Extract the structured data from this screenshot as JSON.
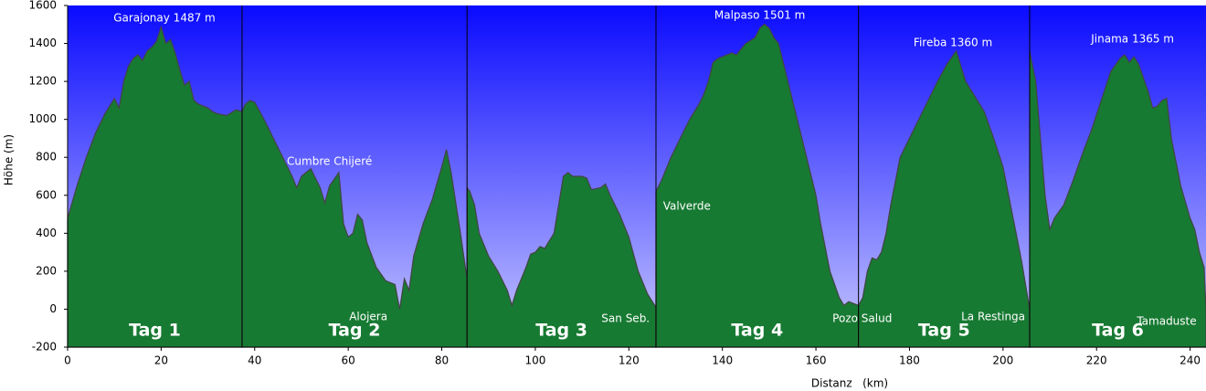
{
  "chart_data": {
    "type": "area",
    "xlabel": "Distanz   (km)",
    "ylabel": "Höhe (m)",
    "xlim": [
      0,
      243.4
    ],
    "ylim": [
      -200,
      1600
    ],
    "xticks": [
      0,
      20,
      40,
      60,
      80,
      100,
      120,
      140,
      160,
      180,
      200,
      220,
      240
    ],
    "yticks": [
      -200,
      0,
      200,
      400,
      600,
      800,
      1000,
      1200,
      1400,
      1600
    ],
    "color": "#22a846",
    "series": [
      {
        "name": "Tag 1",
        "x": [
          0,
          2,
          4,
          6,
          8,
          10,
          11,
          12,
          13,
          14,
          15,
          16,
          17,
          18,
          19,
          20,
          21,
          22,
          23,
          24,
          25,
          26,
          27,
          28,
          30,
          31,
          32,
          34,
          36,
          37.3
        ],
        "values": [
          480,
          650,
          800,
          930,
          1030,
          1110,
          1060,
          1200,
          1280,
          1320,
          1340,
          1310,
          1360,
          1380,
          1410,
          1487,
          1400,
          1420,
          1350,
          1260,
          1180,
          1200,
          1100,
          1080,
          1060,
          1040,
          1030,
          1020,
          1050,
          1040
        ]
      },
      {
        "name": "Tag 2",
        "x": [
          37.3,
          38,
          39,
          40,
          42,
          44,
          46,
          48,
          49,
          50,
          52,
          54,
          55,
          56,
          58,
          59,
          60,
          61,
          62,
          63,
          64,
          66,
          68,
          70,
          71,
          72,
          73,
          74,
          76,
          78,
          80,
          81,
          82,
          84,
          85.4
        ],
        "values": [
          1040,
          1080,
          1100,
          1090,
          1000,
          900,
          800,
          700,
          640,
          700,
          740,
          640,
          560,
          650,
          720,
          450,
          380,
          400,
          500,
          470,
          350,
          220,
          150,
          130,
          0,
          160,
          100,
          280,
          450,
          580,
          750,
          840,
          720,
          400,
          160
        ]
      },
      {
        "name": "Tag 3",
        "x": [
          85.4,
          86,
          87,
          88,
          90,
          92,
          94,
          95,
          96,
          98,
          99,
          100,
          101,
          102,
          104,
          105,
          106,
          107,
          108,
          110,
          111,
          112,
          114,
          115,
          116,
          118,
          120,
          122,
          124,
          125.8
        ],
        "values": [
          640,
          620,
          550,
          400,
          280,
          200,
          100,
          20,
          100,
          220,
          290,
          300,
          330,
          320,
          400,
          550,
          700,
          720,
          700,
          700,
          690,
          630,
          640,
          660,
          600,
          500,
          380,
          200,
          80,
          10
        ]
      },
      {
        "name": "Tag 4",
        "x": [
          125.8,
          127,
          129,
          131,
          133,
          135,
          136,
          137,
          138,
          139,
          140,
          142,
          143,
          144,
          145,
          147,
          148,
          149,
          150,
          151,
          152,
          153,
          155,
          157,
          159,
          160,
          161,
          163,
          165,
          166,
          167,
          169.1
        ],
        "values": [
          620,
          680,
          800,
          900,
          1000,
          1080,
          1130,
          1200,
          1300,
          1320,
          1330,
          1350,
          1340,
          1370,
          1400,
          1430,
          1480,
          1501,
          1480,
          1430,
          1400,
          1300,
          1100,
          900,
          700,
          600,
          450,
          200,
          60,
          20,
          40,
          20
        ]
      },
      {
        "name": "Tag 5",
        "x": [
          169.1,
          170,
          171,
          172,
          173,
          174,
          175,
          176,
          178,
          180,
          182,
          184,
          186,
          188,
          190,
          192,
          194,
          196,
          198,
          200,
          202,
          204,
          205.7
        ],
        "values": [
          20,
          60,
          200,
          270,
          260,
          300,
          400,
          550,
          800,
          900,
          1000,
          1100,
          1200,
          1290,
          1360,
          1200,
          1120,
          1040,
          900,
          750,
          500,
          250,
          0
        ]
      },
      {
        "name": "Tag 6",
        "x": [
          205.7,
          206,
          207,
          208,
          209,
          210,
          211,
          213,
          215,
          217,
          219,
          221,
          223,
          225,
          226,
          227,
          228,
          229,
          231,
          232,
          233,
          234,
          235,
          236,
          238,
          240,
          241,
          242,
          243,
          243.4
        ],
        "values": [
          1360,
          1320,
          1200,
          900,
          600,
          420,
          480,
          550,
          680,
          820,
          950,
          1100,
          1250,
          1320,
          1340,
          1300,
          1330,
          1290,
          1150,
          1060,
          1070,
          1100,
          1110,
          900,
          650,
          480,
          420,
          300,
          220,
          0
        ]
      }
    ],
    "annotations": [
      {
        "text": "Garajonay 1487 m",
        "x": 20.7,
        "y": 1533
      },
      {
        "text": "Cumbre Chijeré",
        "x": 56,
        "y": 777
      },
      {
        "text": "Alojera",
        "x": 64.3,
        "y": -41
      },
      {
        "text": "San Seb.",
        "x": 119.3,
        "y": -51
      },
      {
        "text": "Malpaso 1501 m",
        "x": 148,
        "y": 1547
      },
      {
        "text": "Valverde",
        "x": 132.4,
        "y": 541
      },
      {
        "text": "Pozo Salud",
        "x": 169.9,
        "y": -51
      },
      {
        "text": "Fireba 1360 m",
        "x": 189.3,
        "y": 1403
      },
      {
        "text": "La Restinga",
        "x": 197.9,
        "y": -41
      },
      {
        "text": "Jinama 1365 m",
        "x": 227.7,
        "y": 1422
      },
      {
        "text": "Tamaduste",
        "x": 235,
        "y": -66
      }
    ]
  }
}
